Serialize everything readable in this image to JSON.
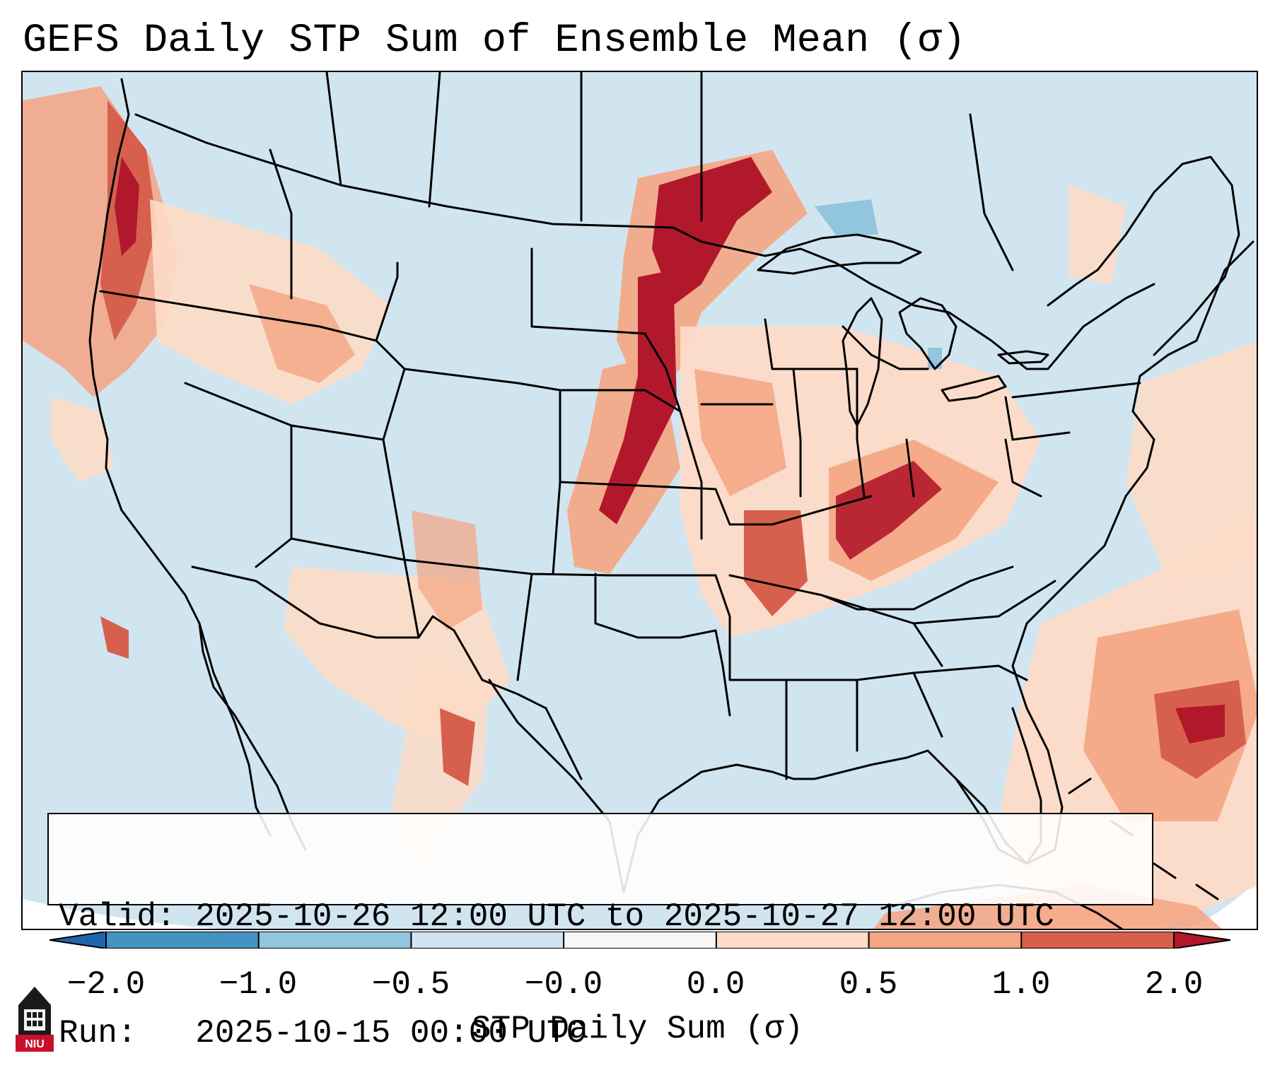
{
  "title": "GEFS Daily STP Sum of Ensemble Mean (σ)",
  "info": {
    "valid_label": "Valid:",
    "valid_value": "2025-10-26 12:00 UTC to 2025-10-27 12:00 UTC",
    "run_label": "Run:",
    "run_value": "2025-10-15 00:00 UTC"
  },
  "colorbar": {
    "label": "STP Daily Sum (σ)",
    "ticks": [
      "−2.0",
      "−1.0",
      "−0.5",
      "−0.0",
      "0.0",
      "0.5",
      "1.0",
      "2.0"
    ],
    "bins": [
      {
        "range": "< -2.0",
        "color": "#2166ac"
      },
      {
        "range": "-2.0 to -1.0",
        "color": "#4393c3"
      },
      {
        "range": "-1.0 to -0.5",
        "color": "#92c5de"
      },
      {
        "range": "-0.5 to -0.0",
        "color": "#d1e5f0"
      },
      {
        "range": "-0.0 to 0.0",
        "color": "#f7f7f7"
      },
      {
        "range": "0.0 to 0.5",
        "color": "#fddbc7"
      },
      {
        "range": "0.5 to 1.0",
        "color": "#f4a582"
      },
      {
        "range": "1.0 to 2.0",
        "color": "#d6604d"
      },
      {
        "range": "> 2.0",
        "color": "#b2182b"
      }
    ]
  },
  "colors": {
    "ocean_background": "#d1e5f0",
    "outline": "#000000",
    "brand_red": "#c8102e"
  },
  "logo": {
    "text": "NIU"
  },
  "icons": {
    "logo": "university-tower-icon"
  }
}
